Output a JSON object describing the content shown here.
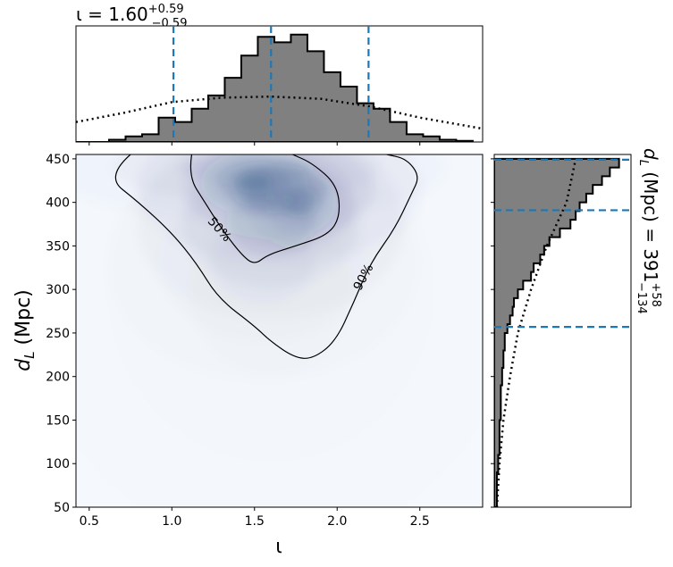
{
  "top_title": {
    "base": "ι = 1.60",
    "sup": "+0.59",
    "sub": "−0.59"
  },
  "right_title": {
    "base": "d",
    "base_sub": "L",
    "unit": " (Mpc) = 391",
    "sup": "+58",
    "sub": "−134"
  },
  "colors": {
    "hist_fill": "#808080",
    "line": "#000000",
    "dashed": "#1f77b4",
    "density": "#08306b"
  },
  "chart_data": [
    {
      "type": "heatmap",
      "xlabel": "ι",
      "ylabel_main": "d",
      "ylabel_sub": "L",
      "ylabel_unit": " (Mpc)",
      "xlim": [
        0.42,
        2.88
      ],
      "ylim": [
        50,
        455
      ],
      "xticks": [
        0.5,
        1.0,
        1.5,
        2.0,
        2.5
      ],
      "xtick_labels": [
        "0.5",
        "1.0",
        "1.5",
        "2.0",
        "2.5"
      ],
      "yticks": [
        50,
        100,
        150,
        200,
        250,
        300,
        350,
        400,
        450
      ],
      "ytick_labels": [
        "50",
        "100",
        "150",
        "200",
        "250",
        "300",
        "350",
        "400",
        "450"
      ],
      "density_blobs": [
        {
          "x": 1.5,
          "y": 422,
          "sx": 0.12,
          "sy": 14,
          "w": 1.0
        },
        {
          "x": 1.78,
          "y": 400,
          "sx": 0.12,
          "sy": 20,
          "w": 0.7
        },
        {
          "x": 1.65,
          "y": 415,
          "sx": 0.32,
          "sy": 32,
          "w": 0.5
        },
        {
          "x": 1.6,
          "y": 375,
          "sx": 0.3,
          "sy": 40,
          "w": 0.35
        },
        {
          "x": 1.55,
          "y": 330,
          "sx": 0.35,
          "sy": 50,
          "w": 0.15
        },
        {
          "x": 1.45,
          "y": 440,
          "sx": 0.45,
          "sy": 22,
          "w": 0.3
        },
        {
          "x": 1.6,
          "y": 300,
          "sx": 0.55,
          "sy": 110,
          "w": 0.05
        }
      ],
      "contours": [
        {
          "label": "50%",
          "level": 50,
          "points": [
            [
              1.12,
              455
            ],
            [
              1.1,
              430
            ],
            [
              1.2,
              400
            ],
            [
              1.3,
              370
            ],
            [
              1.42,
              340
            ],
            [
              1.5,
              328
            ],
            [
              1.58,
              340
            ],
            [
              1.75,
              350
            ],
            [
              1.95,
              363
            ],
            [
              2.02,
              385
            ],
            [
              2.0,
              420
            ],
            [
              1.85,
              445
            ],
            [
              1.73,
              455
            ]
          ]
        },
        {
          "label": "90%",
          "level": 90,
          "points": [
            [
              0.75,
              455
            ],
            [
              0.6,
              430
            ],
            [
              0.8,
              400
            ],
            [
              1.0,
              365
            ],
            [
              1.15,
              330
            ],
            [
              1.28,
              290
            ],
            [
              1.5,
              258
            ],
            [
              1.6,
              240
            ],
            [
              1.74,
              222
            ],
            [
              1.85,
              220
            ],
            [
              1.99,
              240
            ],
            [
              2.1,
              285
            ],
            [
              2.2,
              330
            ],
            [
              2.35,
              370
            ],
            [
              2.45,
              410
            ],
            [
              2.5,
              430
            ],
            [
              2.42,
              450
            ],
            [
              2.3,
              455
            ]
          ]
        }
      ]
    },
    {
      "type": "area",
      "series": [
        {
          "name": "",
          "style": "filled-step",
          "bin_edges": [
            0.42,
            0.52,
            0.62,
            0.72,
            0.82,
            0.92,
            1.02,
            1.12,
            1.22,
            1.32,
            1.42,
            1.52,
            1.62,
            1.72,
            1.82,
            1.92,
            2.02,
            2.12,
            2.22,
            2.32,
            2.42,
            2.52,
            2.62,
            2.72,
            2.82
          ],
          "values": [
            0,
            0,
            0.02,
            0.05,
            0.07,
            0.22,
            0.18,
            0.3,
            0.42,
            0.58,
            0.78,
            0.95,
            0.9,
            0.97,
            0.82,
            0.63,
            0.5,
            0.35,
            0.3,
            0.18,
            0.07,
            0.05,
            0.02,
            0.01
          ]
        },
        {
          "name": "",
          "style": "dotted",
          "x": [
            0.42,
            0.7,
            1.0,
            1.3,
            1.6,
            1.9,
            2.2,
            2.5,
            2.88
          ],
          "y": [
            0.18,
            0.26,
            0.36,
            0.4,
            0.41,
            0.39,
            0.32,
            0.22,
            0.12
          ]
        }
      ],
      "markers": [
        1.01,
        1.6,
        2.19
      ],
      "xlim": [
        0.42,
        2.88
      ]
    },
    {
      "type": "area",
      "orientation": "horizontal",
      "series": [
        {
          "name": "",
          "style": "filled-step",
          "bin_edges": [
            50,
            70,
            90,
            110,
            130,
            150,
            170,
            190,
            210,
            230,
            250,
            260,
            270,
            280,
            290,
            300,
            310,
            320,
            330,
            340,
            350,
            360,
            370,
            380,
            390,
            400,
            410,
            420,
            430,
            440,
            450
          ],
          "values": [
            0.02,
            0.02,
            0.03,
            0.04,
            0.04,
            0.05,
            0.05,
            0.06,
            0.07,
            0.08,
            0.1,
            0.12,
            0.14,
            0.15,
            0.18,
            0.22,
            0.28,
            0.3,
            0.35,
            0.38,
            0.42,
            0.5,
            0.58,
            0.62,
            0.65,
            0.7,
            0.75,
            0.82,
            0.88,
            0.95
          ]
        },
        {
          "name": "",
          "style": "dotted",
          "x": [
            50,
            100,
            150,
            200,
            250,
            300,
            350,
            400,
            450
          ],
          "y": [
            0.02,
            0.04,
            0.07,
            0.12,
            0.18,
            0.28,
            0.4,
            0.55,
            0.62
          ]
        }
      ],
      "markers": [
        257,
        391,
        449
      ],
      "ylim": [
        50,
        455
      ]
    }
  ]
}
